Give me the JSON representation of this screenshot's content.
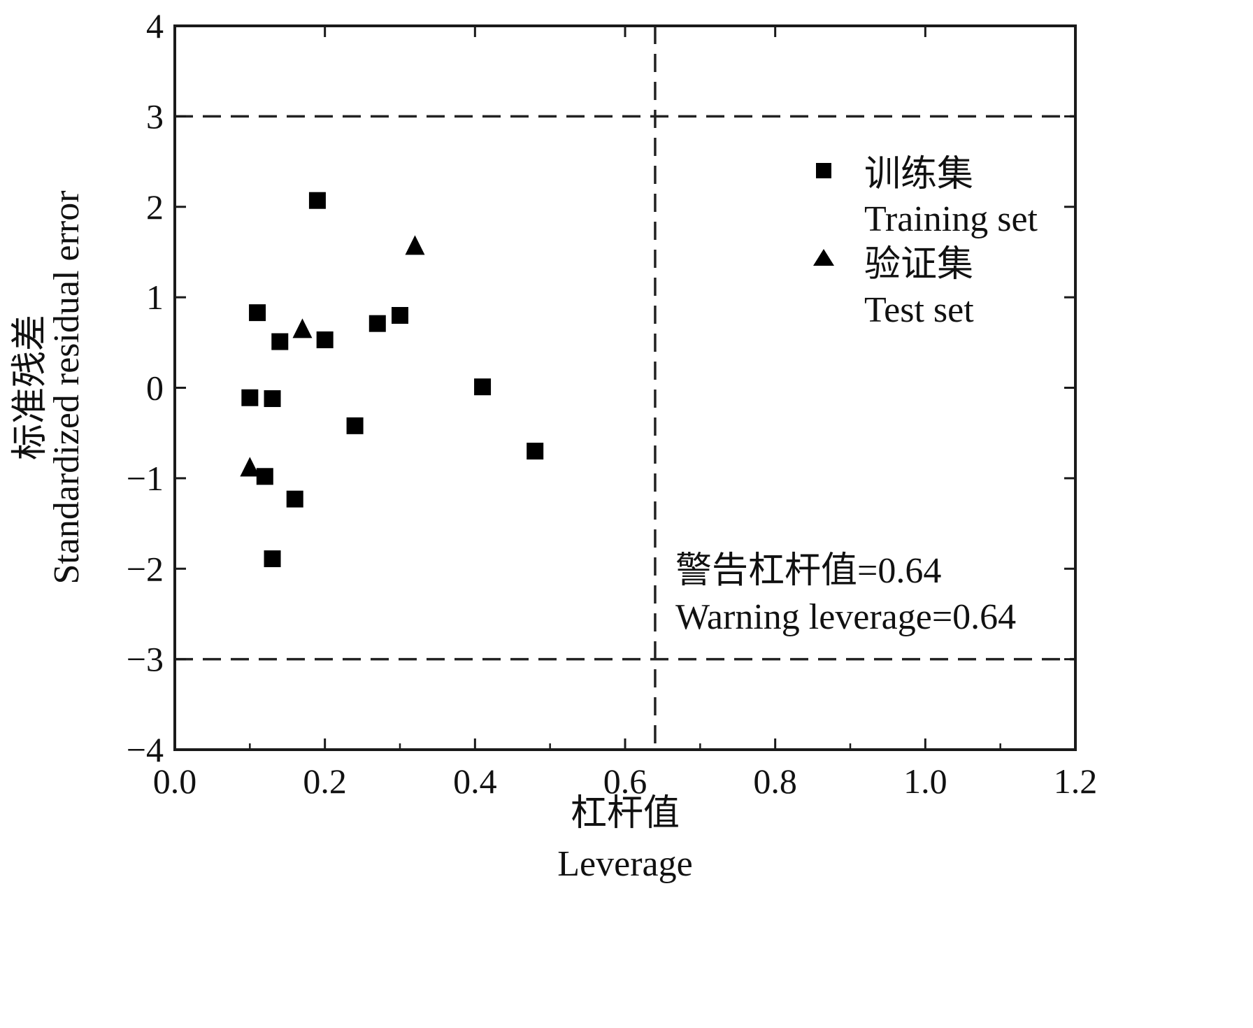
{
  "chart_data": {
    "type": "scatter",
    "xlabel_cn": "杠杆值",
    "xlabel_en": "Leverage",
    "ylabel_cn": "标准残差",
    "ylabel_en": "Standardized residual error",
    "xlim": [
      0.0,
      1.2
    ],
    "ylim": [
      -4,
      4
    ],
    "x_ticks": [
      "0.0",
      "0.2",
      "0.4",
      "0.6",
      "0.8",
      "1.0",
      "1.2"
    ],
    "y_ticks": [
      "4",
      "3",
      "2",
      "1",
      "0",
      "−1",
      "−2",
      "−3",
      "−4"
    ],
    "x_tick_values": [
      0.0,
      0.2,
      0.4,
      0.6,
      0.8,
      1.0,
      1.2
    ],
    "y_tick_values": [
      4,
      3,
      2,
      1,
      0,
      -1,
      -2,
      -3,
      -4
    ],
    "grid": false,
    "legend_position": "top-right",
    "reference_lines": {
      "horizontal": [
        3,
        -3
      ],
      "vertical": [
        0.64
      ]
    },
    "annotation": {
      "cn": "警告杠杆值=0.64",
      "en": "Warning leverage=0.64"
    },
    "series": [
      {
        "name_cn": "训练集",
        "name_en": "Training set",
        "marker": "square",
        "points": [
          {
            "x": 0.19,
            "y": 2.07
          },
          {
            "x": 0.11,
            "y": 0.83
          },
          {
            "x": 0.14,
            "y": 0.51
          },
          {
            "x": 0.2,
            "y": 0.53
          },
          {
            "x": 0.27,
            "y": 0.71
          },
          {
            "x": 0.3,
            "y": 0.8
          },
          {
            "x": 0.1,
            "y": -0.11
          },
          {
            "x": 0.13,
            "y": -0.12
          },
          {
            "x": 0.24,
            "y": -0.42
          },
          {
            "x": 0.41,
            "y": 0.01
          },
          {
            "x": 0.48,
            "y": -0.7
          },
          {
            "x": 0.12,
            "y": -0.98
          },
          {
            "x": 0.16,
            "y": -1.23
          },
          {
            "x": 0.13,
            "y": -1.89
          }
        ]
      },
      {
        "name_cn": "验证集",
        "name_en": "Test set",
        "marker": "triangle",
        "points": [
          {
            "x": 0.32,
            "y": 1.57
          },
          {
            "x": 0.17,
            "y": 0.65
          },
          {
            "x": 0.1,
            "y": -0.88
          }
        ]
      }
    ],
    "colors": {
      "marker": "#000000",
      "axis": "#1a1a1a",
      "reference_line": "#222222"
    }
  }
}
